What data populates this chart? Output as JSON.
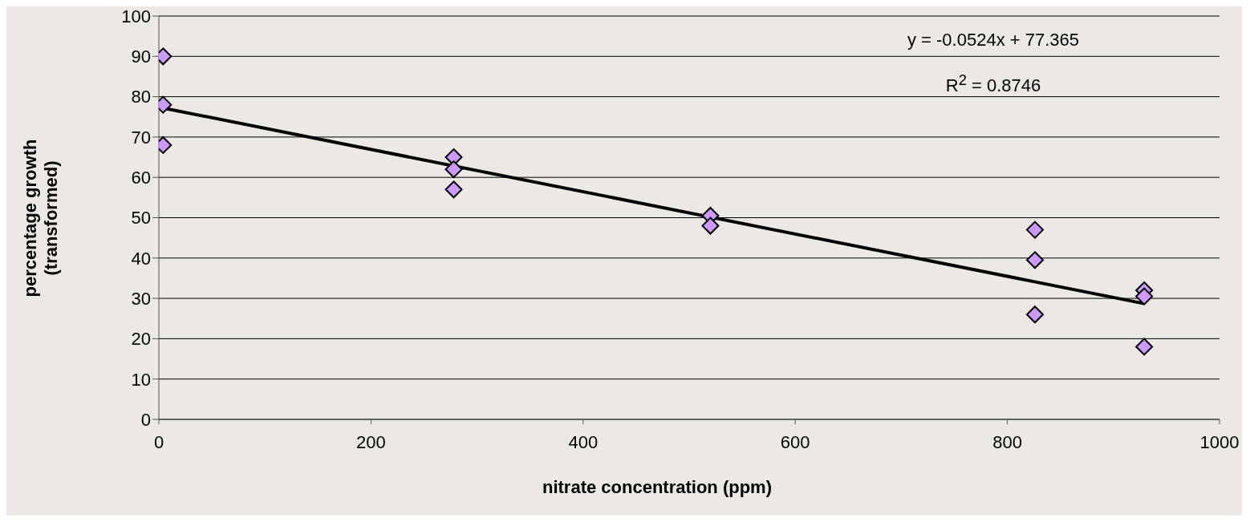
{
  "chart_data": {
    "type": "scatter",
    "xlabel": "nitrate concentration (ppm)",
    "ylabel": "percentage growth (transformed)",
    "annotations": [
      "y = -0.0524x + 77.365",
      "R$^{2}$ = 0.8746"
    ],
    "xlim": [
      0,
      1000
    ],
    "xticks": [
      0,
      200,
      400,
      600,
      800,
      1000
    ],
    "ylim": [
      0,
      100
    ],
    "yticks": [
      0,
      10,
      20,
      30,
      40,
      50,
      60,
      70,
      80,
      90,
      100
    ],
    "grid": "y",
    "series": [
      {
        "marker": "diamond",
        "color": "#cc99ff",
        "x": [
          4,
          4,
          4,
          278,
          278,
          278,
          520,
          520,
          826,
          826,
          826,
          929,
          929,
          929
        ],
        "values": [
          90,
          78,
          68,
          65,
          62,
          57,
          50.5,
          48,
          47,
          39.5,
          26,
          32,
          30.5,
          18
        ]
      },
      {
        "type": "line",
        "marker": "none",
        "color": "#000000",
        "x": [
          4,
          929
        ],
        "values": [
          77.2,
          28.7
        ]
      }
    ]
  }
}
